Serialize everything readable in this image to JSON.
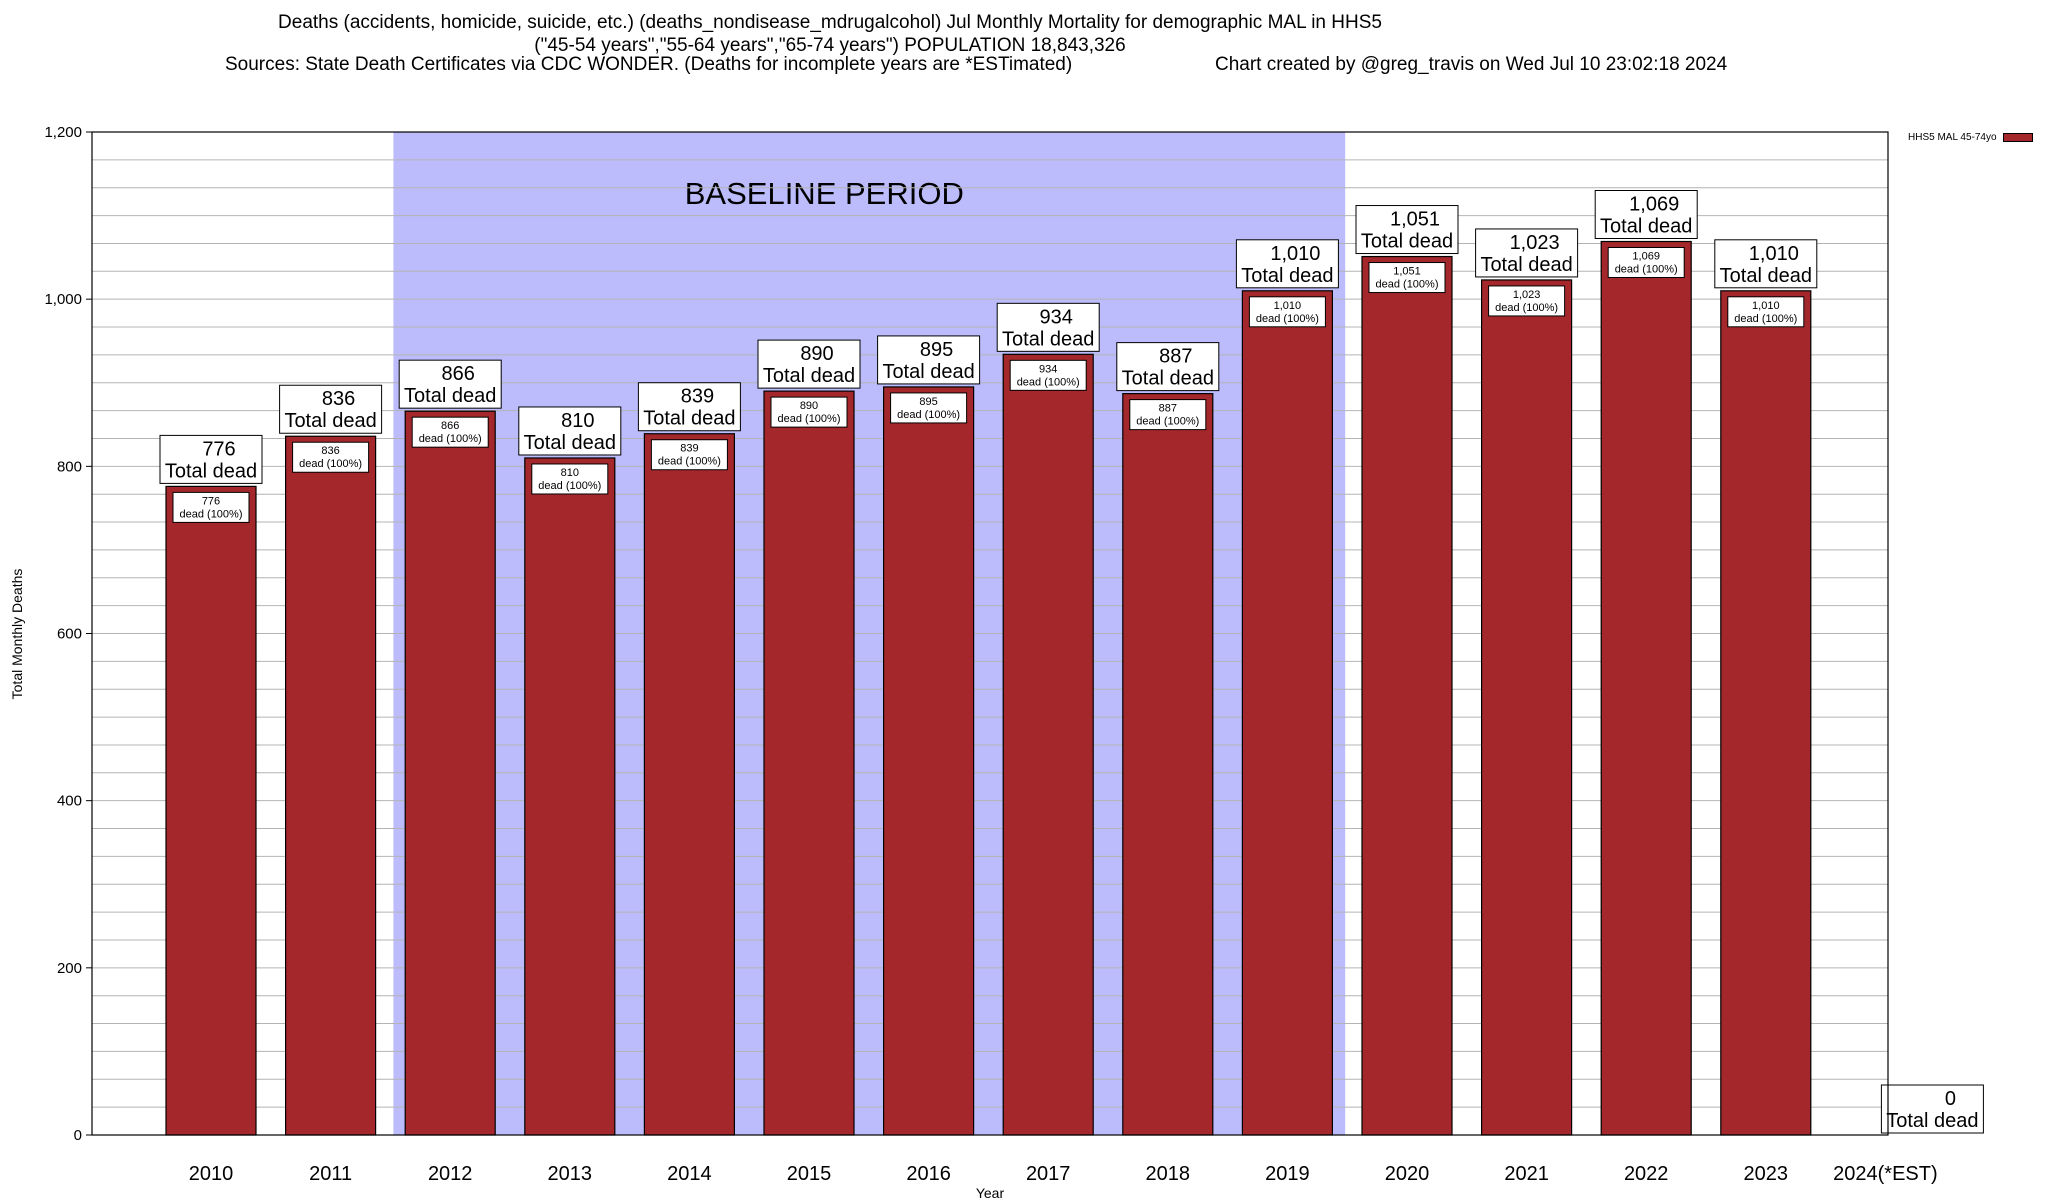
{
  "header": {
    "title_line1": "Deaths (accidents, homicide, suicide, etc.) (deaths_nondisease_mdrugalcohol) Jul Monthly Mortality for demographic MAL in HHS5",
    "title_line2": "(\"45-54 years\",\"55-64 years\",\"65-74 years\") POPULATION 18,843,326",
    "sources": "Sources: State Death Certificates via CDC WONDER. (Deaths for incomplete years are *ESTimated)",
    "credit": "Chart created by @greg_travis on Wed Jul 10 23:02:18 2024"
  },
  "legend": {
    "label": "HHS5 MAL 45-74yo"
  },
  "colors": {
    "bar": "#a4282b",
    "baseline": "#bcbcfc",
    "grid": "#b4b4b4"
  },
  "chart_data": {
    "type": "bar",
    "categories": [
      "2010",
      "2011",
      "2012",
      "2013",
      "2014",
      "2015",
      "2016",
      "2017",
      "2018",
      "2019",
      "2020",
      "2021",
      "2022",
      "2023",
      "2024(*EST)"
    ],
    "values": [
      776,
      836,
      866,
      810,
      839,
      890,
      895,
      934,
      887,
      1010,
      1051,
      1023,
      1069,
      1010,
      0
    ],
    "value_labels": [
      "776",
      "836",
      "866",
      "810",
      "839",
      "890",
      "895",
      "934",
      "887",
      "1,010",
      "1,051",
      "1,023",
      "1,069",
      "1,010",
      "0"
    ],
    "top_label_suffix": "Total dead",
    "inner_label_suffix": "dead (100%)",
    "xlabel": "Year",
    "ylabel": "Total Monthly Deaths",
    "ylim": [
      0,
      1200
    ],
    "yticks": [
      0,
      200,
      400,
      600,
      800,
      1000,
      1200
    ],
    "ytick_labels": [
      "0",
      "200",
      "400",
      "600",
      "800",
      "1,000",
      "1,200"
    ],
    "baseline": {
      "label": "BASELINE PERIOD",
      "from": "2012",
      "to": "2019"
    },
    "grid": true,
    "legend_position": "top-right"
  }
}
